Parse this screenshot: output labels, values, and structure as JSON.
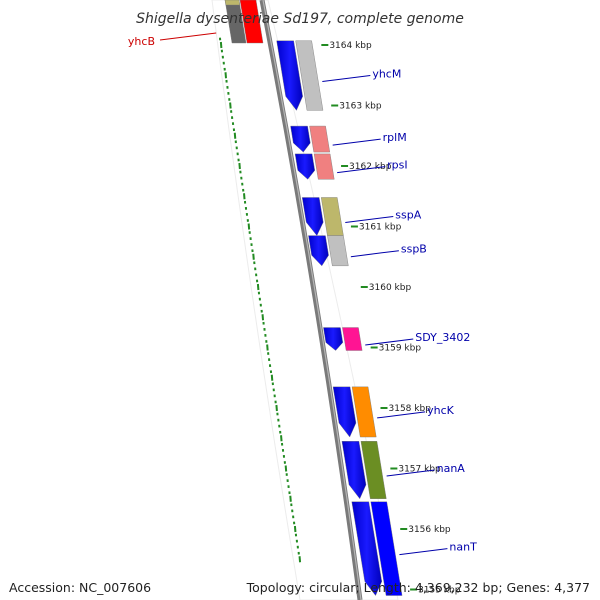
{
  "title": "Shigella dysenteriae Sd197, complete genome",
  "footer": {
    "accession": "Accession: NC_007606",
    "summary": "Topology: circular; Length: 4,369,232 bp; Genes: 4,377"
  },
  "colors": {
    "backbone": "#7a7a7a",
    "ticks": "#228b22",
    "label_blue": "#0000aa",
    "label_red": "#cc0000"
  },
  "scale_labels": [
    {
      "kbp": 3164,
      "text": "3164 kbp"
    },
    {
      "kbp": 3163,
      "text": "3163 kbp"
    },
    {
      "kbp": 3162,
      "text": "3162 kbp"
    },
    {
      "kbp": 3161,
      "text": "3161 kbp"
    },
    {
      "kbp": 3160,
      "text": "3160 kbp"
    },
    {
      "kbp": 3159,
      "text": "3159 kbp"
    },
    {
      "kbp": 3158,
      "text": "3158 kbp"
    },
    {
      "kbp": 3157,
      "text": "3157 kbp"
    },
    {
      "kbp": 3156,
      "text": "3156 kbp"
    },
    {
      "kbp": 3155,
      "text": "3155 kbp"
    }
  ],
  "genes": [
    {
      "name": "yhcB",
      "start_kbp": 3164.15,
      "end_kbp": 3164.5,
      "color": "#ff0000",
      "label_color": "#cc0000"
    },
    {
      "name": "yhcM",
      "start_kbp": 3162.92,
      "end_kbp": 3164.07,
      "color": "#c0c0c0",
      "label_color": "#0000aa"
    },
    {
      "name": "rplM",
      "start_kbp": 3162.23,
      "end_kbp": 3162.66,
      "color": "#f08080",
      "label_color": "#0000aa"
    },
    {
      "name": "rpsI",
      "start_kbp": 3161.78,
      "end_kbp": 3162.2,
      "color": "#f08080",
      "label_color": "#0000aa"
    },
    {
      "name": "sspA",
      "start_kbp": 3160.85,
      "end_kbp": 3161.48,
      "color": "#bdb76b",
      "label_color": "#0000aa"
    },
    {
      "name": "sspB",
      "start_kbp": 3160.35,
      "end_kbp": 3160.85,
      "color": "#c0c0c0",
      "label_color": "#0000aa"
    },
    {
      "name": "SDY_3402",
      "start_kbp": 3158.95,
      "end_kbp": 3159.33,
      "color": "#ff1493",
      "label_color": "#0000aa"
    },
    {
      "name": "yhcK",
      "start_kbp": 3157.52,
      "end_kbp": 3158.35,
      "color": "#ff8c00",
      "label_color": "#0000aa"
    },
    {
      "name": "nanA",
      "start_kbp": 3156.5,
      "end_kbp": 3157.45,
      "color": "#6b8e23",
      "label_color": "#0000aa"
    },
    {
      "name": "nanT",
      "start_kbp": 3154.9,
      "end_kbp": 3156.45,
      "color": "#0000ff",
      "label_color": "#0000aa"
    }
  ]
}
